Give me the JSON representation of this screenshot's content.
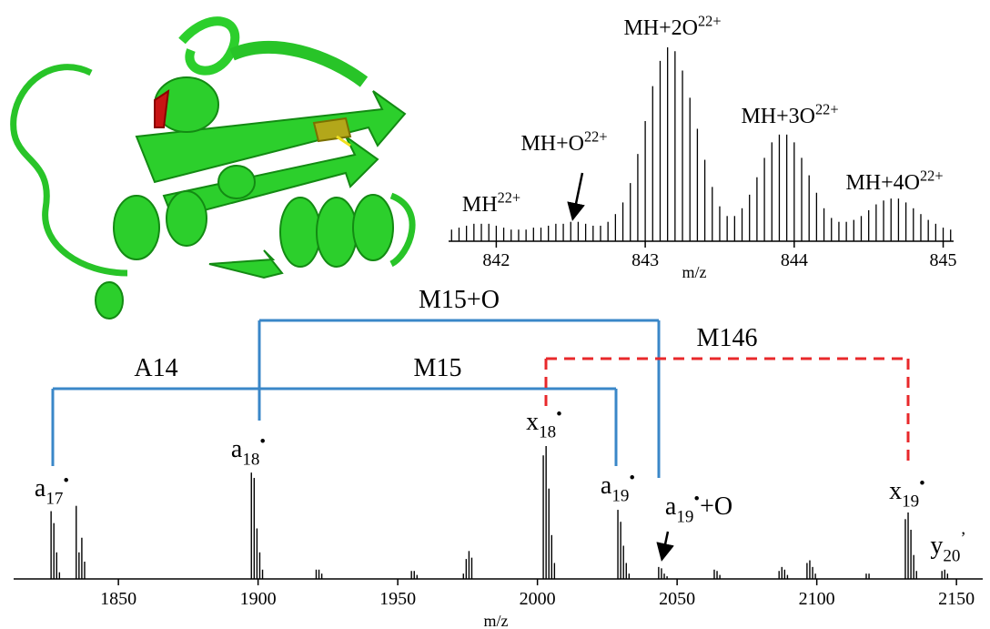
{
  "chart_data": [
    {
      "type": "stem",
      "color": "#000000",
      "x_label": "m/z",
      "xlim": [
        841.68,
        845.07
      ],
      "xticks": [
        842,
        843,
        844,
        845
      ],
      "ylim": [
        0,
        100
      ],
      "x": [
        841.7,
        841.75,
        841.8,
        841.85,
        841.9,
        841.95,
        842.0,
        842.05,
        842.1,
        842.15,
        842.2,
        842.25,
        842.3,
        842.35,
        842.4,
        842.45,
        842.5,
        842.55,
        842.6,
        842.65,
        842.7,
        842.75,
        842.8,
        842.85,
        842.9,
        842.95,
        843.0,
        843.05,
        843.1,
        843.15,
        843.2,
        843.25,
        843.3,
        843.35,
        843.4,
        843.45,
        843.5,
        843.55,
        843.6,
        843.65,
        843.7,
        843.75,
        843.8,
        843.85,
        843.9,
        843.95,
        844.0,
        844.05,
        844.1,
        844.15,
        844.2,
        844.25,
        844.3,
        844.35,
        844.4,
        844.45,
        844.5,
        844.55,
        844.6,
        844.65,
        844.7,
        844.75,
        844.8,
        844.85,
        844.9,
        844.95,
        845.0,
        845.05
      ],
      "values": [
        6,
        7,
        8,
        9,
        9,
        9,
        8,
        7,
        6,
        6,
        6,
        7,
        7,
        8,
        9,
        9,
        10,
        10,
        9,
        8,
        8,
        10,
        14,
        20,
        30,
        45,
        62,
        80,
        93,
        100,
        98,
        88,
        74,
        58,
        42,
        28,
        18,
        13,
        13,
        17,
        24,
        33,
        43,
        51,
        55,
        55,
        51,
        43,
        34,
        25,
        17,
        12,
        10,
        10,
        11,
        13,
        16,
        19,
        21,
        22,
        22,
        20,
        17,
        14,
        11,
        9,
        7,
        6
      ],
      "annotations": [
        {
          "text": "MH",
          "sup": "22+"
        },
        {
          "text": "MH+O",
          "sup": "22+"
        },
        {
          "text": "MH+2O",
          "sup": "22+"
        },
        {
          "text": "MH+3O",
          "sup": "22+"
        },
        {
          "text": "MH+4O",
          "sup": "22+"
        }
      ]
    },
    {
      "type": "stem",
      "color": "#000000",
      "x_label": "m/z",
      "xlim": [
        1812.5,
        2159.4
      ],
      "xticks": [
        1850,
        1900,
        1950,
        2000,
        2050,
        2100,
        2150
      ],
      "ylim": [
        0,
        100
      ],
      "x": [
        1825.9,
        1826.9,
        1827.9,
        1828.9,
        1834.9,
        1835.9,
        1836.9,
        1837.9,
        1897.6,
        1898.6,
        1899.6,
        1900.6,
        1901.6,
        1920.8,
        1921.8,
        1922.8,
        1954.9,
        1955.9,
        1956.9,
        1973.5,
        1974.5,
        1975.5,
        1976.5,
        2002.1,
        2003.1,
        2004.1,
        2005.1,
        2006.1,
        2028.8,
        2029.8,
        2030.8,
        2031.8,
        2032.8,
        2043.4,
        2044.4,
        2045.4,
        2046.4,
        2063.3,
        2064.3,
        2065.3,
        2086.5,
        2087.5,
        2088.5,
        2089.5,
        2096.5,
        2097.5,
        2098.5,
        2099.5,
        2117.7,
        2118.7,
        2131.7,
        2132.7,
        2133.7,
        2134.7,
        2135.7,
        2144.8,
        2145.8,
        2146.8
      ],
      "values": [
        51,
        42,
        20,
        5,
        55,
        20,
        31,
        13,
        80,
        76,
        38,
        20,
        7,
        7,
        7,
        4,
        6,
        6,
        3,
        4,
        15,
        21,
        16,
        93,
        100,
        68,
        33,
        12,
        52,
        43,
        25,
        12,
        4,
        9,
        8,
        4,
        2,
        7,
        6,
        3,
        6,
        9,
        7,
        3,
        12,
        14,
        9,
        4,
        4,
        4,
        45,
        50,
        37,
        18,
        6,
        6,
        7,
        4
      ],
      "ions": [
        {
          "name": "a",
          "sub": "17",
          "sup": "•"
        },
        {
          "name": "a",
          "sub": "18",
          "sup": "•"
        },
        {
          "name": "x",
          "sub": "18",
          "sup": "•"
        },
        {
          "name": "a",
          "sub": "19",
          "sup": "•"
        },
        {
          "name": "a",
          "sub": "19",
          "sup": "•",
          "suffix": "+O"
        },
        {
          "name": "x",
          "sub": "19",
          "sup": "•"
        },
        {
          "name": "y",
          "sub": "20",
          "sup": "’"
        }
      ],
      "brackets": [
        {
          "label": "A14",
          "color": "#3a87c8"
        },
        {
          "label": "M15",
          "color": "#3a87c8"
        },
        {
          "label": "M15+O",
          "color": "#3a87c8"
        },
        {
          "label": "M146",
          "color": "#e8282b"
        }
      ]
    }
  ]
}
